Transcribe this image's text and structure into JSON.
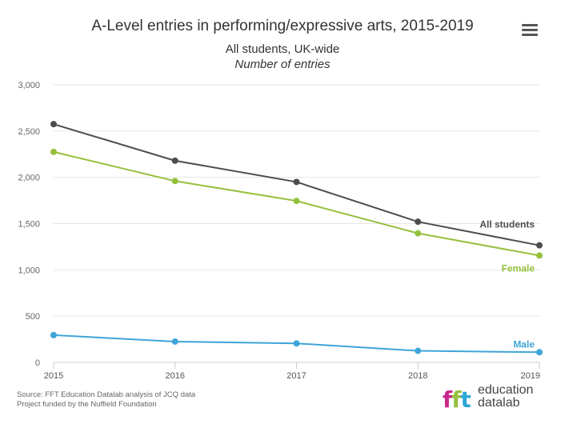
{
  "header": {
    "title": "A-Level entries in performing/expressive arts, 2015-2019",
    "subtitle": "All students, UK-wide",
    "subtitle_italic": "Number of entries"
  },
  "toolbar": {
    "menu_icon": "hamburger-menu-icon"
  },
  "chart_data": {
    "type": "line",
    "x": [
      "2015",
      "2016",
      "2017",
      "2018",
      "2019"
    ],
    "ylim": [
      0,
      3000
    ],
    "yticks": [
      "0",
      "500",
      "1,000",
      "1,500",
      "2,000",
      "2,500",
      "3,000"
    ],
    "ytick_values": [
      0,
      500,
      1000,
      1500,
      2000,
      2500,
      3000
    ],
    "grid": true,
    "legend": "inline-end-labels",
    "series": [
      {
        "name": "All students",
        "color": "#4d4d4d",
        "values": [
          2575,
          2180,
          1950,
          1520,
          1265
        ]
      },
      {
        "name": "Female",
        "color": "#95c03c",
        "values": [
          2275,
          1960,
          1745,
          1395,
          1155
        ]
      },
      {
        "name": "Male",
        "color": "#3ea5d8",
        "values": [
          295,
          225,
          205,
          125,
          110
        ]
      }
    ]
  },
  "footer": {
    "source_line1": "Source: FFT Education Datalab analysis of JCQ data",
    "source_line2": "Project funded by the Nuffield Foundation",
    "logo_line1": "education",
    "logo_line2": "datalab"
  }
}
